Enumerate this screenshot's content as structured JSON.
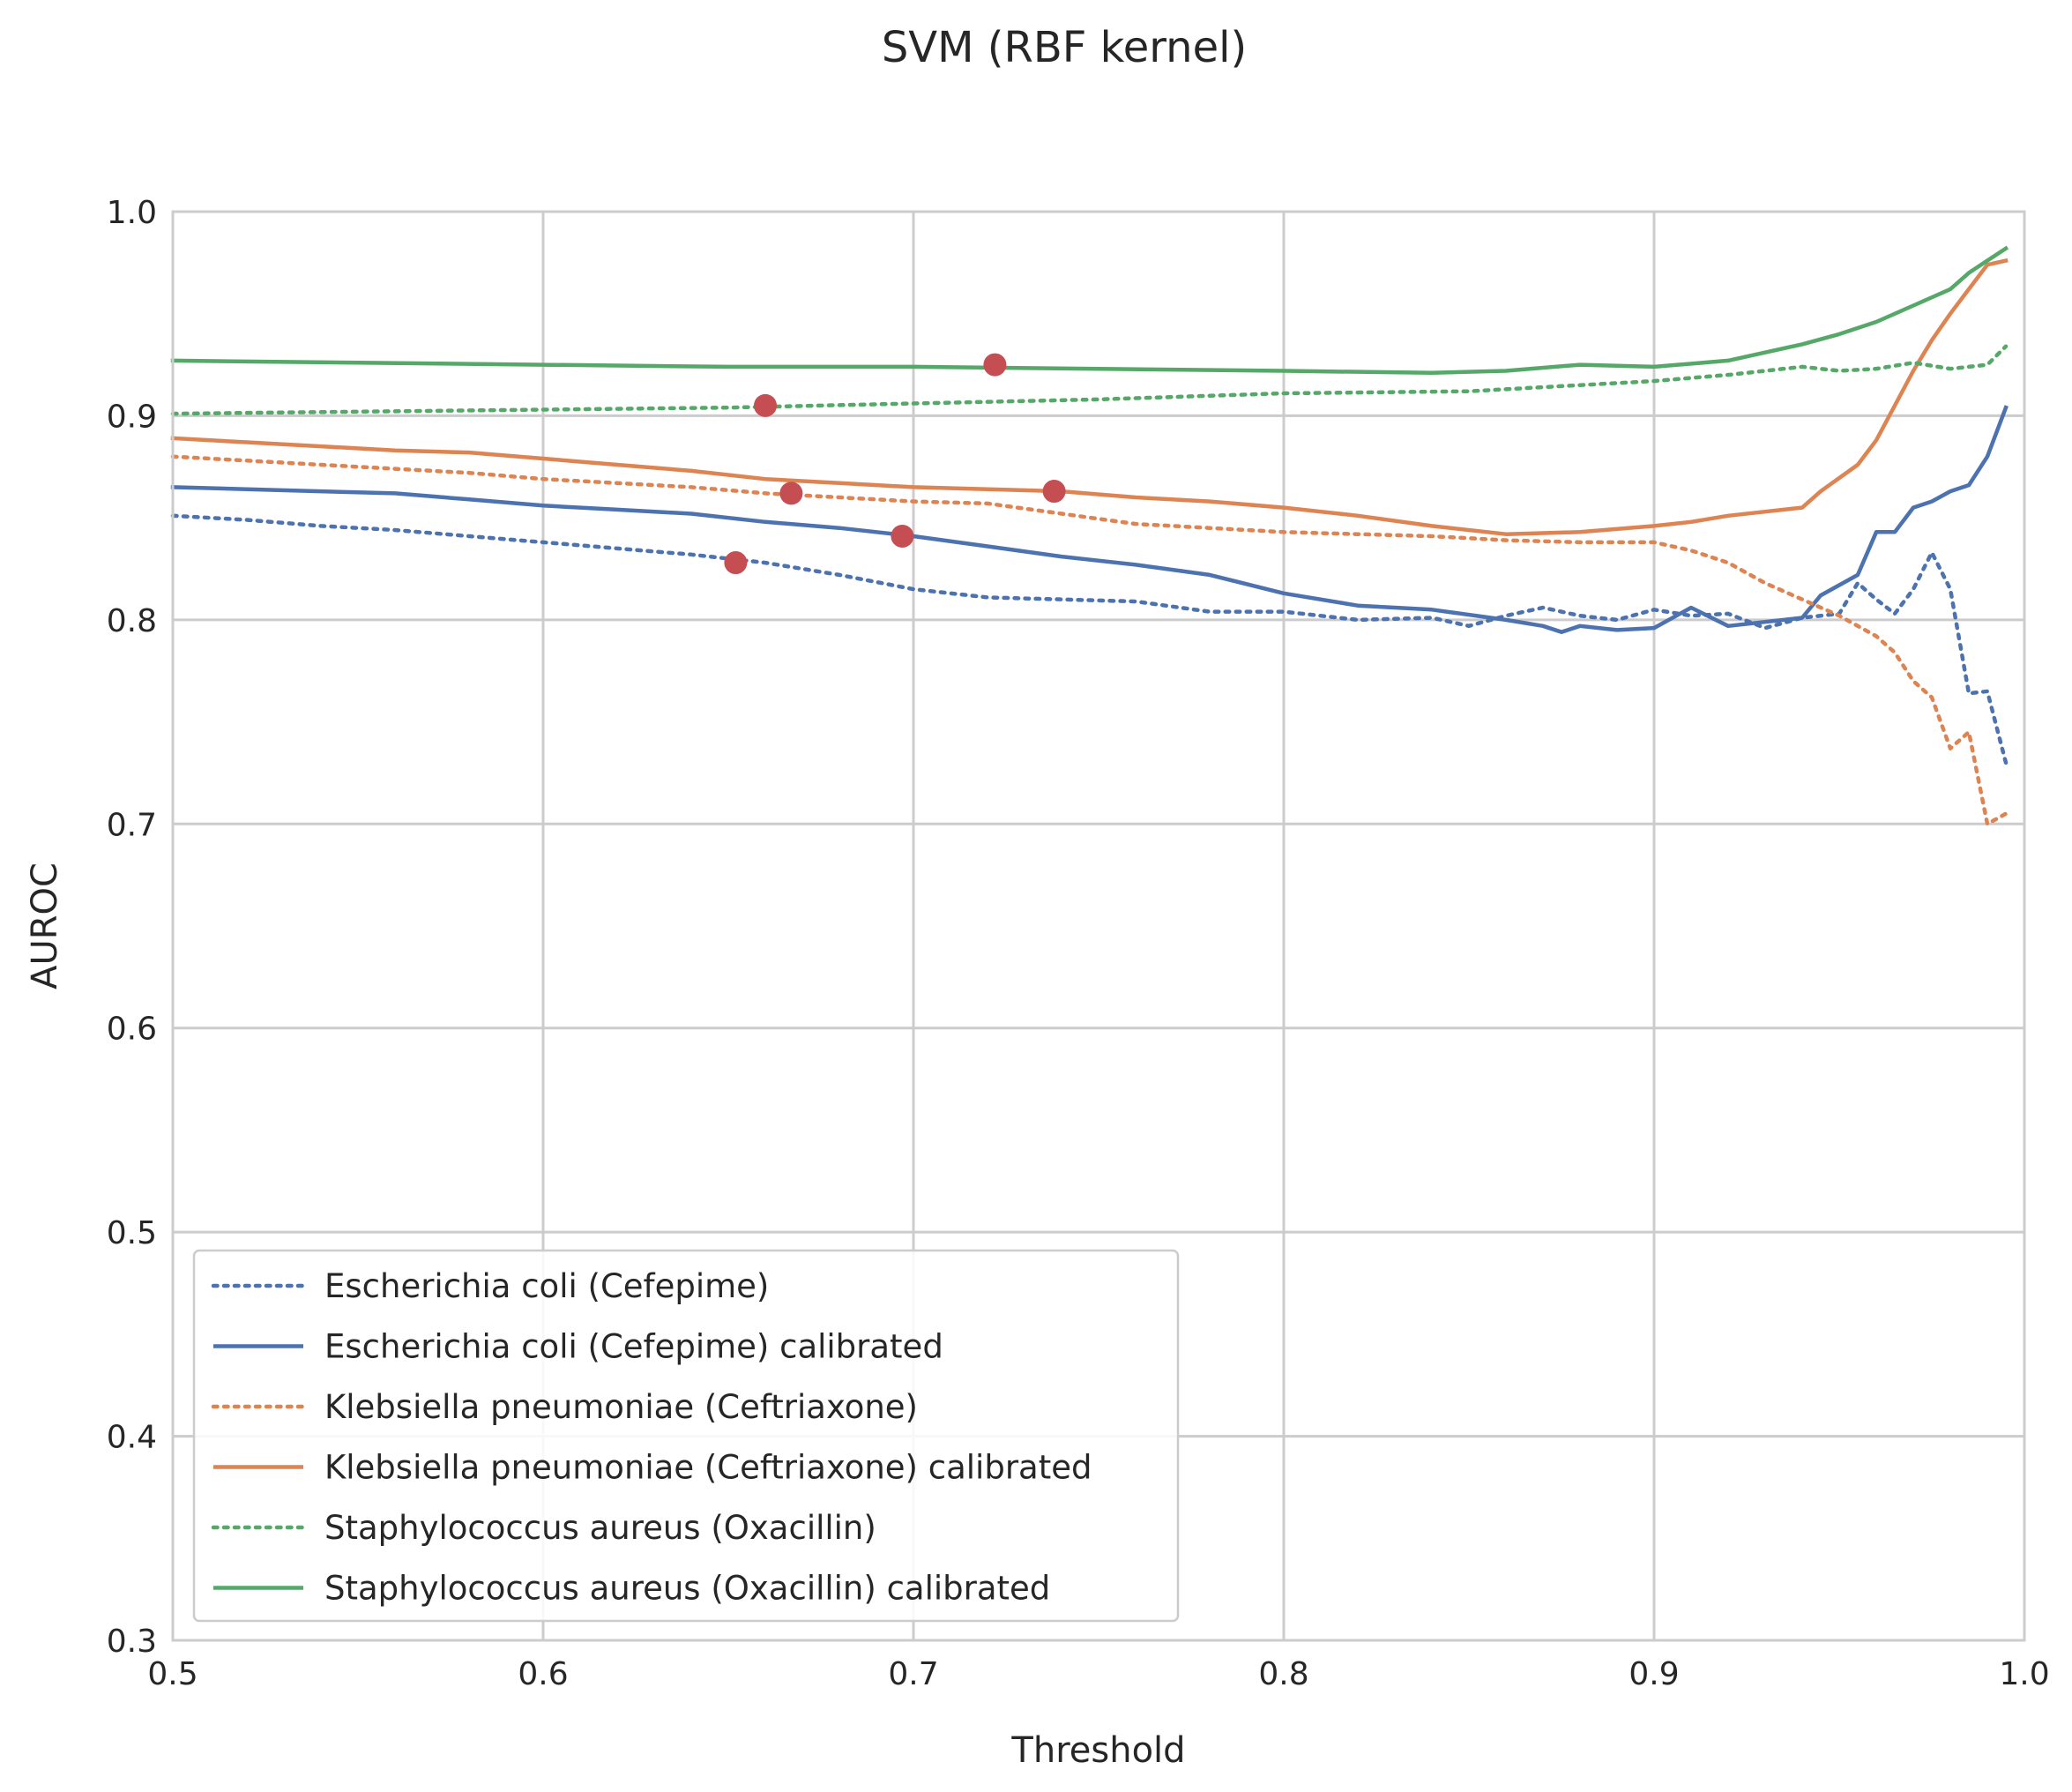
{
  "chart_data": {
    "type": "line",
    "title": "SVM (RBF kernel)",
    "xlabel": "Threshold",
    "ylabel": "AUROC",
    "xlim": [
      0.5,
      1.0
    ],
    "ylim": [
      0.3,
      1.0
    ],
    "xticks": [
      0.5,
      0.6,
      0.7,
      0.8,
      0.9,
      1.0
    ],
    "xtick_labels": [
      "0.5",
      "0.6",
      "0.7",
      "0.8",
      "0.9",
      "1.0"
    ],
    "yticks": [
      0.3,
      0.4,
      0.5,
      0.6,
      0.7,
      0.8,
      0.9,
      1.0
    ],
    "ytick_labels": [
      "0.3",
      "0.4",
      "0.5",
      "0.6",
      "0.7",
      "0.8",
      "0.9",
      "1.0"
    ],
    "grid": true,
    "legend_position": "lower-left",
    "series": [
      {
        "name": "Escherichia coli (Cefepime)",
        "color": "#4c72b0",
        "style": "dotted",
        "x": [
          0.5,
          0.52,
          0.54,
          0.56,
          0.58,
          0.6,
          0.62,
          0.64,
          0.66,
          0.68,
          0.7,
          0.72,
          0.74,
          0.76,
          0.78,
          0.8,
          0.82,
          0.84,
          0.85,
          0.86,
          0.87,
          0.88,
          0.89,
          0.9,
          0.91,
          0.92,
          0.93,
          0.94,
          0.95,
          0.955,
          0.96,
          0.965,
          0.97,
          0.975,
          0.98,
          0.985,
          0.99,
          0.995
        ],
        "y": [
          0.851,
          0.849,
          0.846,
          0.844,
          0.841,
          0.838,
          0.835,
          0.832,
          0.828,
          0.822,
          0.815,
          0.811,
          0.81,
          0.809,
          0.804,
          0.804,
          0.8,
          0.801,
          0.797,
          0.802,
          0.806,
          0.802,
          0.8,
          0.805,
          0.802,
          0.803,
          0.796,
          0.801,
          0.803,
          0.818,
          0.81,
          0.803,
          0.815,
          0.833,
          0.815,
          0.764,
          0.765,
          0.73
        ]
      },
      {
        "name": "Escherichia coli (Cefepime) calibrated",
        "color": "#4c72b0",
        "style": "solid",
        "x": [
          0.5,
          0.52,
          0.54,
          0.56,
          0.58,
          0.6,
          0.62,
          0.64,
          0.66,
          0.68,
          0.7,
          0.72,
          0.74,
          0.76,
          0.78,
          0.8,
          0.82,
          0.84,
          0.86,
          0.87,
          0.875,
          0.88,
          0.89,
          0.9,
          0.91,
          0.92,
          0.93,
          0.94,
          0.945,
          0.955,
          0.96,
          0.965,
          0.97,
          0.975,
          0.98,
          0.985,
          0.99,
          0.995
        ],
        "y": [
          0.865,
          0.864,
          0.863,
          0.862,
          0.859,
          0.856,
          0.854,
          0.852,
          0.848,
          0.845,
          0.841,
          0.836,
          0.831,
          0.827,
          0.822,
          0.813,
          0.807,
          0.805,
          0.8,
          0.797,
          0.794,
          0.797,
          0.795,
          0.796,
          0.806,
          0.797,
          0.799,
          0.801,
          0.812,
          0.822,
          0.843,
          0.843,
          0.855,
          0.858,
          0.863,
          0.866,
          0.88,
          0.904
        ]
      },
      {
        "name": "Klebsiella pneumoniae (Ceftriaxone)",
        "color": "#dd8452",
        "style": "dotted",
        "x": [
          0.5,
          0.52,
          0.54,
          0.56,
          0.58,
          0.6,
          0.62,
          0.64,
          0.66,
          0.68,
          0.7,
          0.72,
          0.74,
          0.76,
          0.78,
          0.8,
          0.82,
          0.84,
          0.86,
          0.88,
          0.9,
          0.91,
          0.92,
          0.93,
          0.94,
          0.95,
          0.96,
          0.965,
          0.97,
          0.975,
          0.98,
          0.985,
          0.99,
          0.995
        ],
        "y": [
          0.88,
          0.878,
          0.876,
          0.874,
          0.872,
          0.869,
          0.867,
          0.865,
          0.862,
          0.86,
          0.858,
          0.857,
          0.852,
          0.847,
          0.845,
          0.843,
          0.842,
          0.841,
          0.839,
          0.838,
          0.838,
          0.834,
          0.828,
          0.818,
          0.81,
          0.802,
          0.792,
          0.784,
          0.77,
          0.762,
          0.737,
          0.745,
          0.7,
          0.705
        ]
      },
      {
        "name": "Klebsiella pneumoniae (Ceftriaxone) calibrated",
        "color": "#dd8452",
        "style": "solid",
        "x": [
          0.5,
          0.52,
          0.54,
          0.56,
          0.58,
          0.6,
          0.62,
          0.64,
          0.66,
          0.68,
          0.7,
          0.72,
          0.74,
          0.76,
          0.78,
          0.8,
          0.82,
          0.84,
          0.86,
          0.88,
          0.9,
          0.91,
          0.92,
          0.93,
          0.94,
          0.945,
          0.955,
          0.96,
          0.965,
          0.97,
          0.975,
          0.98,
          0.985,
          0.99,
          0.995
        ],
        "y": [
          0.889,
          0.887,
          0.885,
          0.883,
          0.882,
          0.879,
          0.876,
          0.873,
          0.869,
          0.867,
          0.865,
          0.864,
          0.863,
          0.86,
          0.858,
          0.855,
          0.851,
          0.846,
          0.842,
          0.843,
          0.846,
          0.848,
          0.851,
          0.853,
          0.855,
          0.863,
          0.876,
          0.888,
          0.905,
          0.922,
          0.937,
          0.95,
          0.962,
          0.974,
          0.976
        ]
      },
      {
        "name": "Staphylococcus aureus (Oxacillin)",
        "color": "#55a868",
        "style": "dotted",
        "x": [
          0.5,
          0.55,
          0.6,
          0.65,
          0.7,
          0.75,
          0.8,
          0.85,
          0.88,
          0.9,
          0.92,
          0.94,
          0.95,
          0.96,
          0.97,
          0.98,
          0.99,
          0.995
        ],
        "y": [
          0.901,
          0.902,
          0.903,
          0.904,
          0.906,
          0.908,
          0.911,
          0.912,
          0.915,
          0.917,
          0.92,
          0.924,
          0.922,
          0.923,
          0.926,
          0.923,
          0.925,
          0.934
        ]
      },
      {
        "name": "Staphylococcus aureus (Oxacillin) calibrated",
        "color": "#55a868",
        "style": "solid",
        "x": [
          0.5,
          0.55,
          0.6,
          0.65,
          0.7,
          0.75,
          0.8,
          0.84,
          0.86,
          0.88,
          0.9,
          0.92,
          0.94,
          0.95,
          0.96,
          0.97,
          0.98,
          0.985,
          0.99,
          0.995
        ],
        "y": [
          0.927,
          0.926,
          0.925,
          0.924,
          0.924,
          0.923,
          0.922,
          0.921,
          0.922,
          0.925,
          0.924,
          0.927,
          0.935,
          0.94,
          0.946,
          0.954,
          0.962,
          0.97,
          0.976,
          0.982
        ]
      }
    ],
    "markers": {
      "color": "#c44e52",
      "points": [
        {
          "x": 0.652,
          "y": 0.828
        },
        {
          "x": 0.66,
          "y": 0.905
        },
        {
          "x": 0.667,
          "y": 0.862
        },
        {
          "x": 0.697,
          "y": 0.841
        },
        {
          "x": 0.722,
          "y": 0.925
        },
        {
          "x": 0.738,
          "y": 0.863
        }
      ]
    }
  }
}
